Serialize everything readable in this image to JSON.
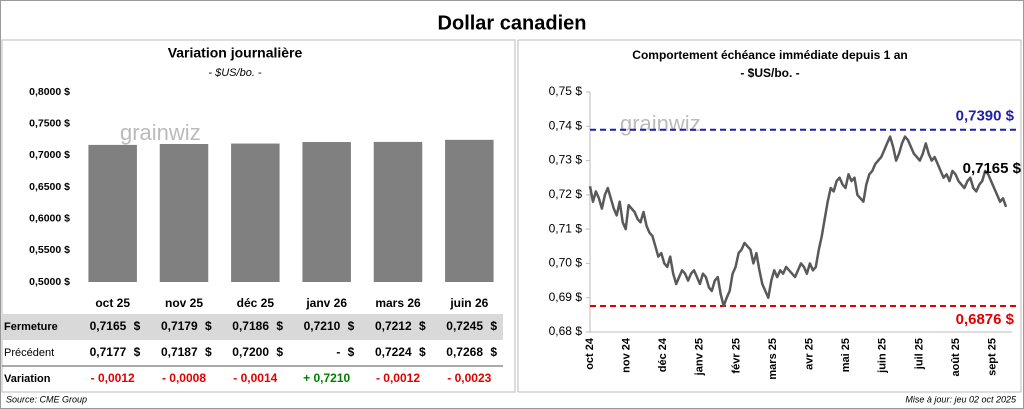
{
  "title": "Dollar canadien",
  "watermark": "grainwiz",
  "chart_data": [
    {
      "type": "bar",
      "title": "Variation  journalière",
      "subtitle": "- $US/bo. -",
      "categories": [
        "oct 25",
        "nov 25",
        "déc 25",
        "janv 26",
        "mars 26",
        "juin 26"
      ],
      "values": [
        0.7165,
        0.7179,
        0.7186,
        0.721,
        0.7212,
        0.7245
      ],
      "color": "#808080",
      "ylim": [
        0.5,
        0.8
      ],
      "yticks": [
        {
          "value": 0.8,
          "label": "0,8000 $"
        },
        {
          "value": 0.75,
          "label": "0,7500 $"
        },
        {
          "value": 0.7,
          "label": "0,7000 $"
        },
        {
          "value": 0.65,
          "label": "0,6500 $"
        },
        {
          "value": 0.6,
          "label": "0,6000 $"
        },
        {
          "value": 0.55,
          "label": "0,5500 $"
        },
        {
          "value": 0.5,
          "label": "0,5000 $"
        }
      ],
      "grid": false
    },
    {
      "type": "line",
      "title": "Comportement échéance immédiate depuis 1 an",
      "subtitle": "- $US/bo. -",
      "xticks": [
        "oct 24",
        "nov 24",
        "déc 24",
        "janv 25",
        "févr 25",
        "mars 25",
        "avr 25",
        "mai 25",
        "juin 25",
        "juil 25",
        "août 25",
        "sept 25"
      ],
      "series": [
        {
          "name": "Échéance immédiate",
          "color": "#595959",
          "values": [
            0.7225,
            0.718,
            0.721,
            0.719,
            0.716,
            0.72,
            0.722,
            0.719,
            0.716,
            0.714,
            0.718,
            0.712,
            0.71,
            0.717,
            0.716,
            0.715,
            0.713,
            0.712,
            0.715,
            0.711,
            0.709,
            0.708,
            0.705,
            0.702,
            0.703,
            0.7,
            0.699,
            0.702,
            0.697,
            0.694,
            0.696,
            0.698,
            0.697,
            0.695,
            0.697,
            0.698,
            0.696,
            0.694,
            0.697,
            0.696,
            0.693,
            0.692,
            0.695,
            0.696,
            0.691,
            0.6876,
            0.69,
            0.692,
            0.697,
            0.699,
            0.703,
            0.704,
            0.706,
            0.705,
            0.704,
            0.7,
            0.703,
            0.698,
            0.694,
            0.692,
            0.69,
            0.695,
            0.698,
            0.696,
            0.698,
            0.697,
            0.699,
            0.698,
            0.697,
            0.696,
            0.698,
            0.7,
            0.699,
            0.697,
            0.7,
            0.698,
            0.699,
            0.704,
            0.708,
            0.713,
            0.718,
            0.722,
            0.721,
            0.724,
            0.725,
            0.723,
            0.722,
            0.726,
            0.724,
            0.725,
            0.72,
            0.719,
            0.718,
            0.723,
            0.726,
            0.727,
            0.729,
            0.73,
            0.731,
            0.733,
            0.735,
            0.737,
            0.734,
            0.73,
            0.732,
            0.735,
            0.737,
            0.736,
            0.734,
            0.732,
            0.731,
            0.73,
            0.732,
            0.735,
            0.732,
            0.73,
            0.731,
            0.729,
            0.727,
            0.725,
            0.726,
            0.724,
            0.727,
            0.726,
            0.724,
            0.723,
            0.722,
            0.724,
            0.725,
            0.722,
            0.721,
            0.723,
            0.724,
            0.727,
            0.726,
            0.724,
            0.722,
            0.72,
            0.718,
            0.719,
            0.7165
          ]
        }
      ],
      "ylim": [
        0.68,
        0.75
      ],
      "yticks": [
        {
          "value": 0.75,
          "label": "0,75 $"
        },
        {
          "value": 0.74,
          "label": "0,74 $"
        },
        {
          "value": 0.73,
          "label": "0,73 $"
        },
        {
          "value": 0.72,
          "label": "0,72 $"
        },
        {
          "value": 0.71,
          "label": "0,71 $"
        },
        {
          "value": 0.7,
          "label": "0,70 $"
        },
        {
          "value": 0.69,
          "label": "0,69 $"
        },
        {
          "value": 0.68,
          "label": "0,68 $"
        }
      ],
      "hlines": [
        {
          "value": 0.739,
          "label": "0,7390 $",
          "color": "#1f1faa"
        },
        {
          "value": 0.6876,
          "label": "0,6876 $",
          "color": "#e00000"
        }
      ],
      "end_label": "0,7165 $",
      "grid": false
    }
  ],
  "table": {
    "rows": [
      {
        "label": "Fermeture",
        "cells": [
          "0,7165",
          "0,7179",
          "0,7186",
          "0,7210",
          "0,7212",
          "0,7245"
        ],
        "unit": "$"
      },
      {
        "label": "Précédent",
        "cells": [
          "0,7177",
          "0,7187",
          "0,7200",
          "-",
          "0,7224",
          "0,7268"
        ],
        "unit": "$"
      },
      {
        "label": "Variation",
        "cells": [
          "- 0,0012",
          "- 0,0008",
          "- 0,0014",
          "+ 0,7210",
          "- 0,0012",
          "- 0,0023"
        ]
      }
    ],
    "positive_color": "#008000",
    "negative_color": "#e00000"
  },
  "source": "Source: CME Group",
  "updated": "Mise à jour: jeu 02 oct 2025"
}
